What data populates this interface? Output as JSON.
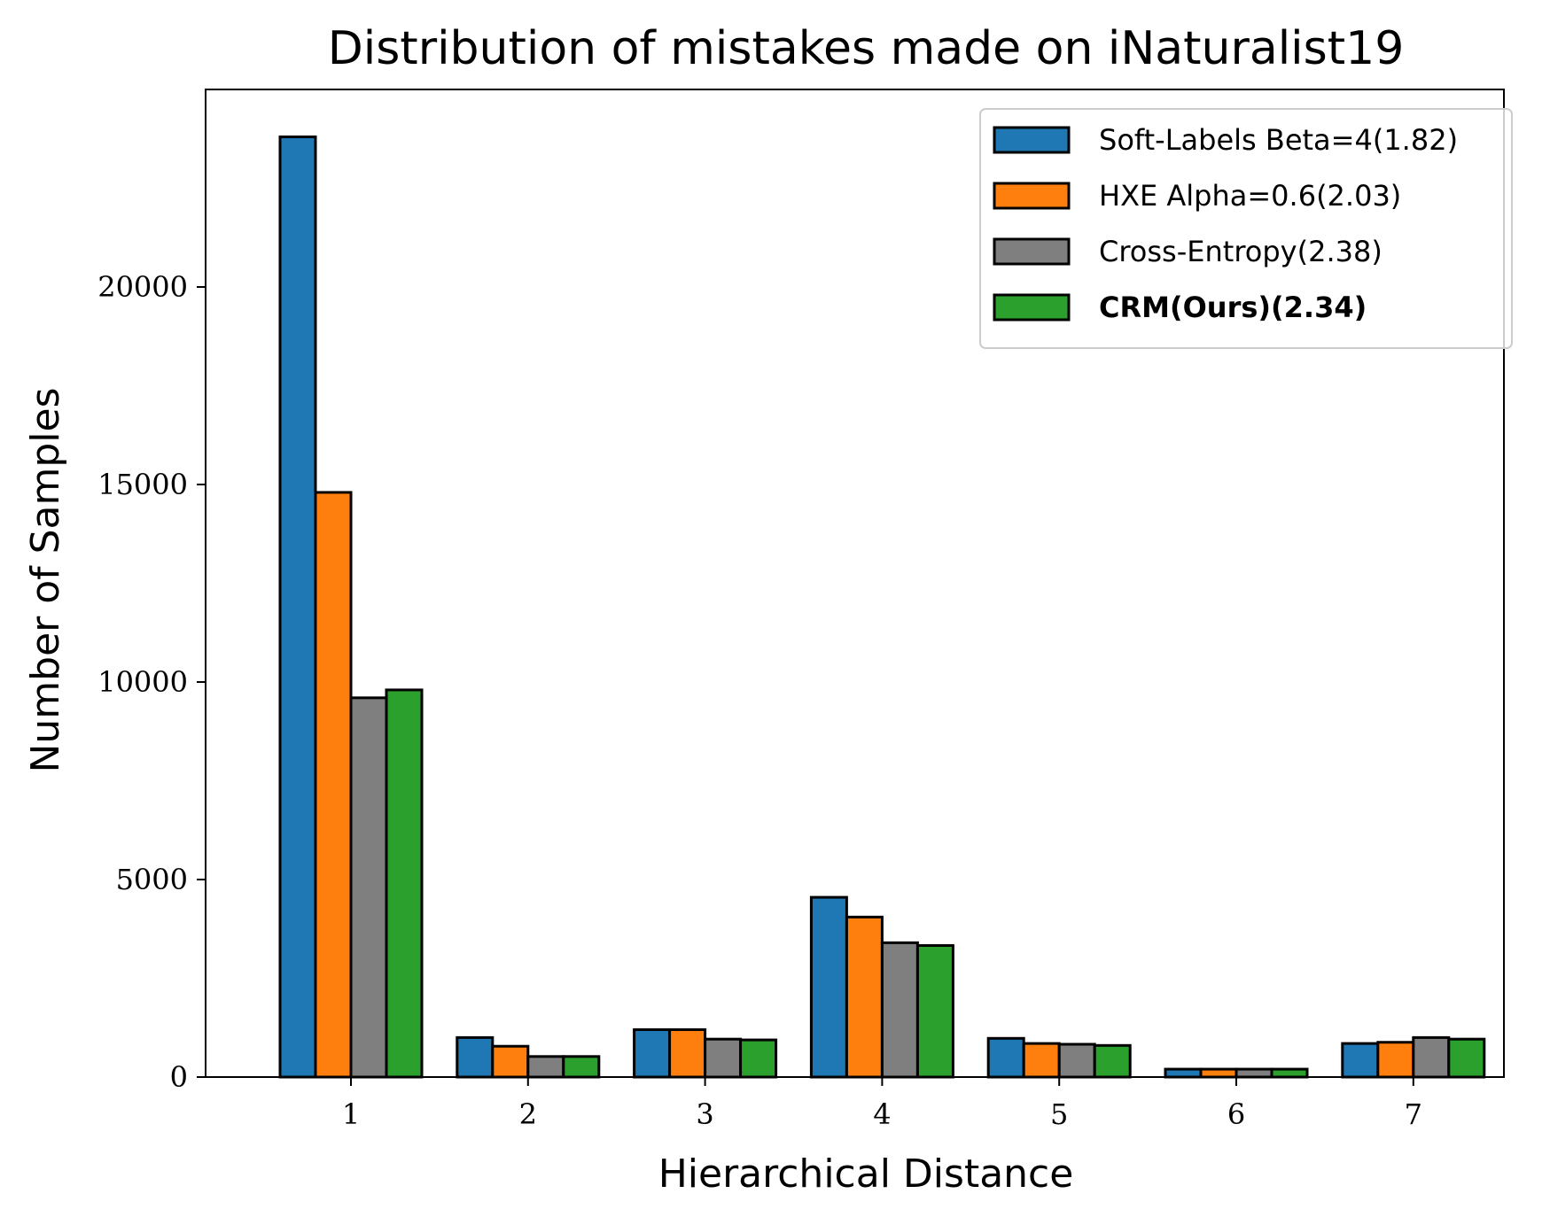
{
  "chart_data": {
    "type": "bar",
    "title": "Distribution of mistakes made on iNaturalist19",
    "xlabel": "Hierarchical Distance",
    "ylabel": "Number of Samples",
    "categories": [
      "1",
      "2",
      "3",
      "4",
      "5",
      "6",
      "7"
    ],
    "ylim": [
      0,
      25000
    ],
    "yticks": [
      "0",
      "5000",
      "10000",
      "15000",
      "20000"
    ],
    "grid": false,
    "legend_position": "top-right",
    "series": [
      {
        "name": "Soft-Labels Beta=4(1.82)",
        "color": "#1f77b4",
        "bold": false,
        "values": [
          23800,
          1000,
          1200,
          4550,
          980,
          200,
          850
        ]
      },
      {
        "name": "HXE Alpha=0.6(2.03)",
        "color": "#ff7f0e",
        "bold": false,
        "values": [
          14800,
          780,
          1200,
          4050,
          850,
          200,
          880
        ]
      },
      {
        "name": "Cross-Entropy(2.38)",
        "color": "#7f7f7f",
        "bold": false,
        "values": [
          9600,
          520,
          960,
          3400,
          830,
          200,
          1000
        ]
      },
      {
        "name": "CRM(Ours)(2.34)",
        "color": "#2ca02c",
        "bold": true,
        "values": [
          9800,
          520,
          940,
          3330,
          800,
          200,
          960
        ]
      }
    ]
  }
}
